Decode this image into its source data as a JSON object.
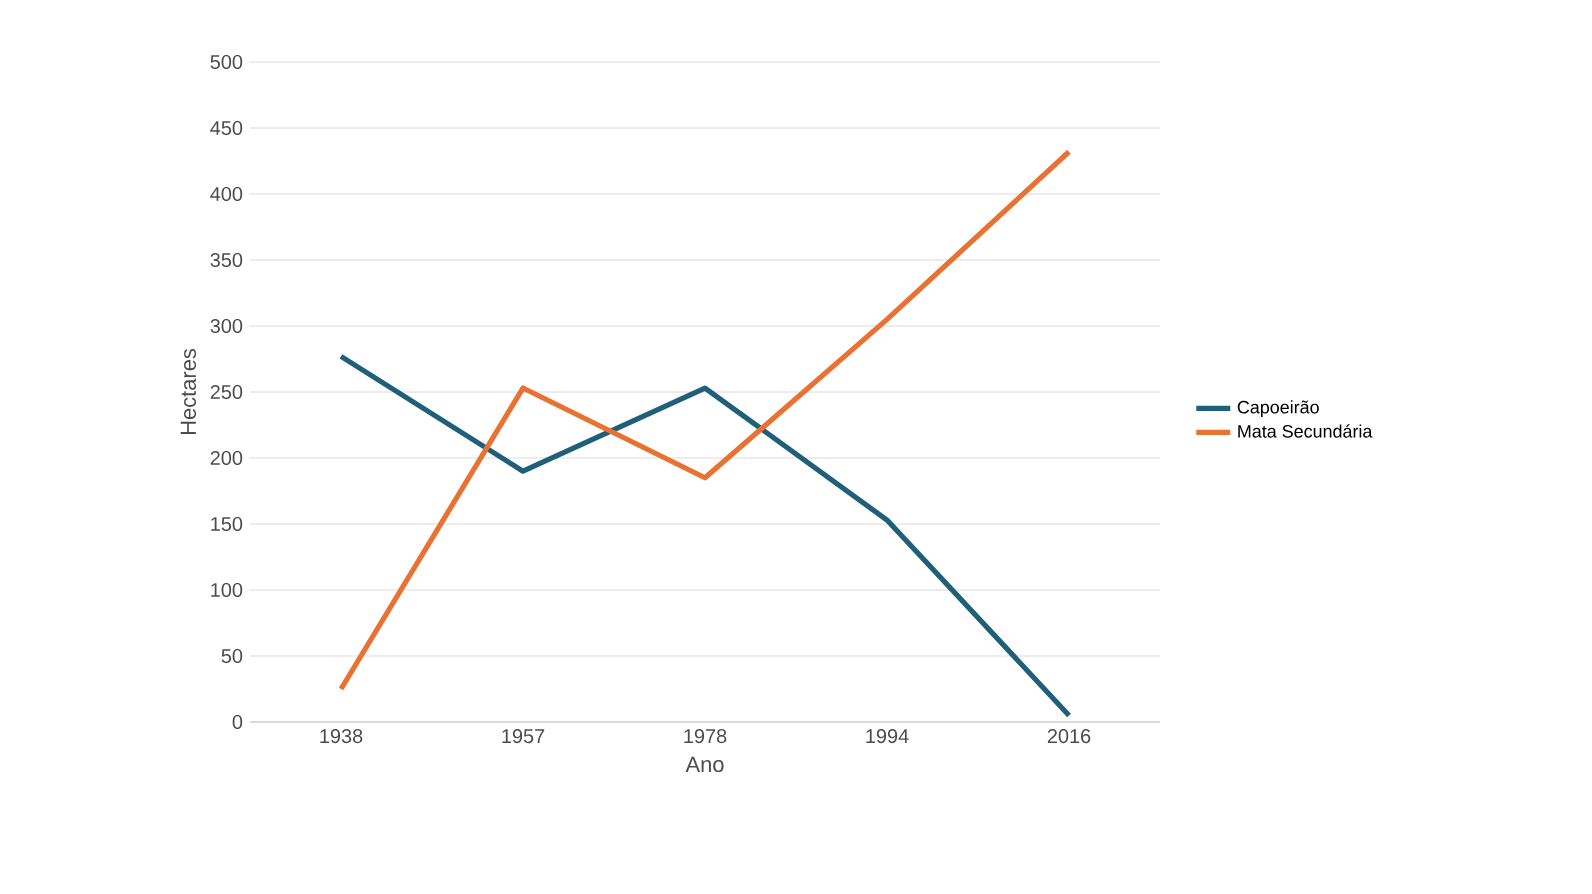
{
  "chart_data": {
    "type": "line",
    "xlabel": "Ano",
    "ylabel": "Hectares",
    "categories": [
      "1938",
      "1957",
      "1978",
      "1994",
      "2016"
    ],
    "series": [
      {
        "name": "Capoeirão",
        "color": "#1f5f7a",
        "values": [
          277,
          190,
          253,
          153,
          5
        ]
      },
      {
        "name": "Mata Secundária",
        "color": "#e97132",
        "values": [
          25,
          253,
          185,
          305,
          432
        ]
      }
    ],
    "ylim": [
      0,
      500
    ],
    "yticks": [
      0,
      50,
      100,
      150,
      200,
      250,
      300,
      350,
      400,
      450,
      500
    ],
    "grid": "y",
    "legend": "right",
    "marker": "none",
    "line_style": "solid"
  }
}
